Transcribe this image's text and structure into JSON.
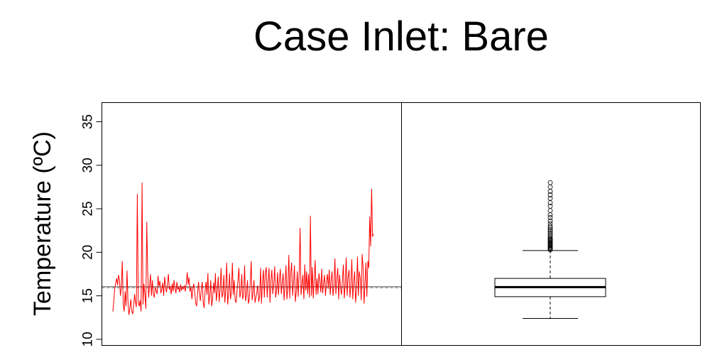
{
  "chart_data": [
    {
      "type": "line",
      "title": "Case Inlet: Bare",
      "ylabel": "Temperature (ºC)",
      "xlabel": "",
      "ylim": [
        9.3,
        37.2
      ],
      "yticks": [
        10,
        15,
        20,
        25,
        30,
        35
      ],
      "grid": false,
      "series": [
        {
          "color": "#ff0000",
          "values": [
            13.2,
            14.5,
            15.8,
            16.5,
            17.0,
            16.2,
            17.4,
            16.8,
            15.0,
            16.0,
            19.0,
            14.0,
            13.2,
            15.5,
            13.8,
            17.9,
            14.4,
            12.8,
            13.5,
            14.6,
            13.3,
            12.9,
            13.6,
            15.2,
            14.3,
            13.7,
            26.7,
            14.2,
            13.8,
            14.5,
            13.2,
            28.0,
            14.0,
            16.4,
            15.2,
            13.5,
            23.5,
            17.8,
            14.8,
            16.2,
            17.5,
            15.0,
            16.8,
            15.2,
            14.8,
            16.0,
            15.6,
            15.2,
            17.3,
            16.1,
            16.7,
            15.3,
            15.8,
            16.5,
            15.0,
            17.2,
            16.0,
            15.4,
            16.3,
            17.5,
            15.7,
            16.1,
            15.2,
            16.4,
            15.5,
            16.8,
            15.9,
            15.3,
            16.6,
            15.7,
            16.0,
            15.4,
            16.3,
            15.6,
            16.0,
            15.8,
            16.2,
            15.5,
            16.4,
            17.7,
            16.3,
            17.1,
            15.5,
            16.0,
            14.6,
            15.8,
            16.4,
            15.4,
            14.2,
            13.8,
            15.2,
            16.6,
            15.3,
            14.4,
            15.8,
            16.6,
            14.2,
            13.6,
            15.5,
            16.6,
            15.1,
            17.6,
            14.0,
            15.1,
            16.8,
            13.8,
            14.6,
            16.5,
            15.3,
            17.6,
            14.4,
            15.6,
            17.2,
            14.3,
            15.6,
            18.2,
            14.8,
            15.2,
            17.4,
            14.2,
            15.9,
            18.8,
            14.0,
            15.3,
            17.6,
            14.6,
            15.4,
            18.8,
            15.1,
            16.8,
            14.5,
            14.2,
            15.6,
            16.8,
            18.2,
            14.8,
            15.4,
            17.5,
            14.6,
            15.2,
            18.5,
            14.4,
            15.1,
            16.8,
            14.1,
            14.6,
            16.4,
            19.0,
            14.5,
            15.3,
            16.8,
            14.2,
            14.8,
            15.4,
            16.2,
            14.3,
            14.9,
            18.2,
            14.1,
            16.6,
            18.0,
            14.8,
            17.5,
            18.3,
            14.8,
            16.6,
            18.2,
            14.2,
            16.8,
            18.0,
            15.2,
            16.4,
            18.4,
            14.8,
            15.6,
            17.7,
            15.1,
            16.8,
            18.1,
            15.2,
            16.5,
            17.6,
            14.5,
            16.3,
            18.5,
            14.6,
            15.8,
            19.7,
            14.7,
            17.5,
            18.8,
            15.0,
            16.5,
            18.5,
            14.3,
            15.6,
            17.8,
            14.9,
            17.4,
            22.8,
            15.1,
            16.3,
            17.4,
            14.6,
            18.6,
            15.6,
            17.8,
            15.2,
            17.5,
            14.8,
            24.2,
            15.0,
            18.3,
            14.7,
            16.8,
            19.1,
            15.1,
            17.0,
            15.2,
            17.6,
            16.7,
            15.4,
            18.1,
            15.3,
            16.5,
            17.4,
            15.0,
            16.6,
            17.5,
            15.8,
            18.0,
            15.1,
            16.8,
            17.8,
            15.0,
            16.1,
            19.3,
            15.2,
            16.9,
            18.2,
            14.6,
            17.4,
            15.9,
            15.1,
            16.8,
            18.6,
            14.7,
            16.4,
            19.4,
            15.0,
            17.1,
            18.0,
            14.8,
            16.2,
            19.2,
            14.6,
            16.6,
            17.8,
            14.2,
            15.8,
            19.5,
            15.0,
            17.8,
            17.0,
            14.5,
            19.8,
            18.2,
            14.1,
            16.5,
            18.8,
            14.9,
            19.0,
            18.2,
            24.1,
            20.7,
            27.3,
            21.8,
            22.1
          ]
        },
        {
          "name": "",
          "color": "#555555",
          "values": [
            16.0,
            16.0
          ]
        }
      ]
    },
    {
      "type": "box",
      "ylim": [
        9.3,
        37.2
      ],
      "stats": {
        "min": 12.4,
        "q1": 14.9,
        "median": 16.0,
        "q3": 17.0,
        "max": 20.2
      },
      "outliers": [
        20.3,
        20.4,
        20.5,
        20.6,
        20.7,
        20.8,
        20.9,
        21.0,
        21.1,
        21.2,
        21.3,
        21.4,
        21.5,
        21.6,
        21.8,
        22.0,
        22.2,
        22.4,
        22.6,
        22.8,
        23.0,
        23.3,
        23.6,
        24.0,
        24.3,
        24.8,
        25.3,
        25.7,
        26.2,
        26.6,
        27.0,
        27.5,
        28.0
      ]
    }
  ]
}
